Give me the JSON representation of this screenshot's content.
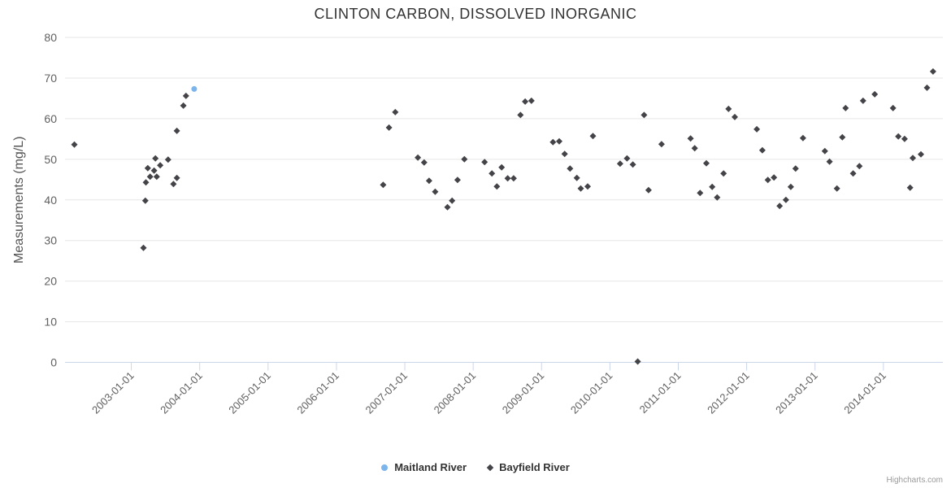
{
  "credits": "Highcharts.com",
  "chart_data": {
    "type": "scatter",
    "title": "CLINTON CARBON, DISSOLVED INORGANIC",
    "xlabel": "",
    "ylabel": "Measurements (mg/L)",
    "ylim": [
      0,
      80
    ],
    "ytick_interval": 10,
    "x_range_yearfrac": [
      2002.03,
      2014.87
    ],
    "grid": "horizontal",
    "legend_position": "bottom-center",
    "axis_line_color": "#ccd6eb",
    "grid_color": "#e6e6e6",
    "label_color": "#606060",
    "xticks": [
      "2003-01-01",
      "2004-01-01",
      "2005-01-01",
      "2006-01-01",
      "2007-01-01",
      "2008-01-01",
      "2009-01-01",
      "2010-01-01",
      "2011-01-01",
      "2012-01-01",
      "2013-01-01",
      "2014-01-01"
    ],
    "series": [
      {
        "name": "Maitland River",
        "color": "#7cb5ec",
        "marker": "circle",
        "points": [
          [
            "2003-12-02",
            67.3
          ]
        ]
      },
      {
        "name": "Bayfield River",
        "color": "#434348",
        "marker": "diamond",
        "points": [
          [
            "2002-03-01",
            53.6
          ],
          [
            "2003-03-05",
            28.2
          ],
          [
            "2003-03-15",
            39.8
          ],
          [
            "2003-03-18",
            44.3
          ],
          [
            "2003-03-28",
            47.8
          ],
          [
            "2003-04-10",
            45.7
          ],
          [
            "2003-05-01",
            47.2
          ],
          [
            "2003-05-08",
            50.2
          ],
          [
            "2003-05-15",
            45.7
          ],
          [
            "2003-06-03",
            48.5
          ],
          [
            "2003-07-15",
            49.9
          ],
          [
            "2003-08-13",
            43.9
          ],
          [
            "2003-09-01",
            45.4
          ],
          [
            "2003-09-01",
            57.0
          ],
          [
            "2003-10-05",
            63.2
          ],
          [
            "2003-10-19",
            65.6
          ],
          [
            "2006-09-07",
            43.7
          ],
          [
            "2006-10-08",
            57.8
          ],
          [
            "2006-11-11",
            61.6
          ],
          [
            "2007-03-10",
            50.4
          ],
          [
            "2007-04-13",
            49.2
          ],
          [
            "2007-05-09",
            44.7
          ],
          [
            "2007-06-11",
            42.0
          ],
          [
            "2007-08-16",
            38.2
          ],
          [
            "2007-09-10",
            39.8
          ],
          [
            "2007-10-09",
            44.9
          ],
          [
            "2007-11-15",
            50.0
          ],
          [
            "2008-03-01",
            49.3
          ],
          [
            "2008-04-10",
            46.5
          ],
          [
            "2008-05-06",
            43.3
          ],
          [
            "2008-06-01",
            48.0
          ],
          [
            "2008-07-03",
            45.3
          ],
          [
            "2008-08-04",
            45.3
          ],
          [
            "2008-09-10",
            60.9
          ],
          [
            "2008-10-05",
            64.2
          ],
          [
            "2008-11-08",
            64.4
          ],
          [
            "2009-03-01",
            54.2
          ],
          [
            "2009-04-04",
            54.4
          ],
          [
            "2009-05-03",
            51.3
          ],
          [
            "2009-06-01",
            47.7
          ],
          [
            "2009-07-07",
            45.4
          ],
          [
            "2009-07-28",
            42.8
          ],
          [
            "2009-09-04",
            43.3
          ],
          [
            "2009-10-02",
            55.7
          ],
          [
            "2010-02-25",
            48.9
          ],
          [
            "2010-04-01",
            50.2
          ],
          [
            "2010-05-02",
            48.7
          ],
          [
            "2010-05-28",
            0.2
          ],
          [
            "2010-07-01",
            60.9
          ],
          [
            "2010-07-25",
            42.4
          ],
          [
            "2010-10-03",
            53.7
          ],
          [
            "2011-03-06",
            55.1
          ],
          [
            "2011-03-28",
            52.7
          ],
          [
            "2011-04-26",
            41.7
          ],
          [
            "2011-05-29",
            49.0
          ],
          [
            "2011-06-30",
            43.2
          ],
          [
            "2011-07-26",
            40.6
          ],
          [
            "2011-08-30",
            46.5
          ],
          [
            "2011-09-26",
            62.4
          ],
          [
            "2011-10-29",
            60.4
          ],
          [
            "2012-02-25",
            57.4
          ],
          [
            "2012-03-24",
            52.2
          ],
          [
            "2012-04-23",
            44.9
          ],
          [
            "2012-05-25",
            45.5
          ],
          [
            "2012-06-25",
            38.5
          ],
          [
            "2012-07-28",
            40.0
          ],
          [
            "2012-08-24",
            43.2
          ],
          [
            "2012-09-19",
            47.7
          ],
          [
            "2012-10-28",
            55.2
          ],
          [
            "2013-02-23",
            52.0
          ],
          [
            "2013-03-18",
            49.4
          ],
          [
            "2013-04-27",
            42.8
          ],
          [
            "2013-05-25",
            55.4
          ],
          [
            "2013-06-12",
            62.6
          ],
          [
            "2013-07-22",
            46.5
          ],
          [
            "2013-08-25",
            48.3
          ],
          [
            "2013-09-14",
            64.4
          ],
          [
            "2013-11-16",
            66.0
          ],
          [
            "2014-02-22",
            62.6
          ],
          [
            "2014-03-20",
            55.6
          ],
          [
            "2014-04-23",
            55.0
          ],
          [
            "2014-05-22",
            43.0
          ],
          [
            "2014-06-06",
            50.3
          ],
          [
            "2014-07-19",
            51.2
          ],
          [
            "2014-08-21",
            67.6
          ],
          [
            "2014-09-23",
            71.6
          ]
        ]
      }
    ]
  }
}
